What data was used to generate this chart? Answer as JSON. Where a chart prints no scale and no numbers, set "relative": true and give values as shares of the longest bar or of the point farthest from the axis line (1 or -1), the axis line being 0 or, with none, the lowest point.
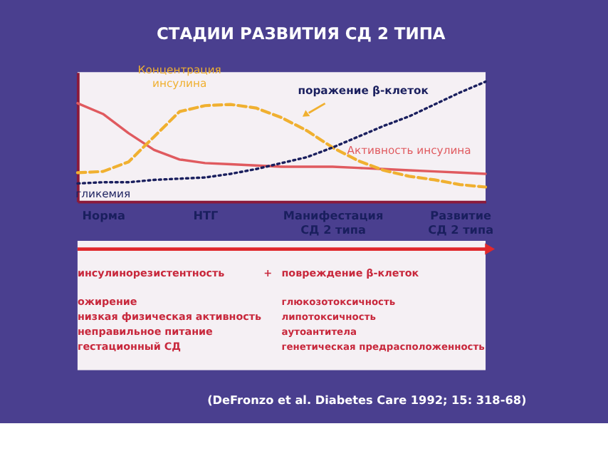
{
  "chart_data": {
    "type": "line",
    "title": "СТАДИИ РАЗВИТИЯ СД 2 ТИПА",
    "relative": true,
    "categories": [
      null,
      "Норма",
      null,
      null,
      null,
      "НТГ",
      null,
      null,
      null,
      null,
      "Манифестация\nСД 2 типа",
      null,
      null,
      null,
      null,
      "Развитие\nСД 2 типа",
      null
    ],
    "series": [
      {
        "name": "Активность инсулина",
        "color": "#e05a5f",
        "line_style": "solid",
        "values": [
          0.82,
          0.73,
          0.57,
          0.43,
          0.35,
          0.32,
          0.31,
          0.3,
          0.29,
          0.29,
          0.29,
          0.28,
          0.27,
          0.26,
          0.25,
          0.24,
          0.23
        ]
      },
      {
        "name": "Концентрация инсулина",
        "color": "#f0b030",
        "line_style": "dashed",
        "values": [
          0.24,
          0.25,
          0.33,
          0.54,
          0.75,
          0.8,
          0.81,
          0.78,
          0.7,
          0.59,
          0.45,
          0.34,
          0.26,
          0.21,
          0.18,
          0.14,
          0.12
        ]
      },
      {
        "name": "гликемия",
        "color": "#1a1f5e",
        "line_style": "dotted",
        "values": [
          0.15,
          0.16,
          0.16,
          0.18,
          0.19,
          0.2,
          0.23,
          0.27,
          0.32,
          0.37,
          0.45,
          0.54,
          0.63,
          0.71,
          0.81,
          0.91,
          1
        ]
      }
    ],
    "annotations": [
      "поражение β-клеток",
      "инсулинорезистентность",
      "+",
      "повреждение β-клеток",
      "ожирение",
      "низкая физическая активность",
      "неправильное питание",
      "гестационный СД",
      "глюкозотоксичность",
      "липотоксичность",
      "аутоантитела",
      "генетическая предрасположенность",
      "(DeFronzo et al. Diabetes Care 1992; 15: 318-68)"
    ]
  }
}
